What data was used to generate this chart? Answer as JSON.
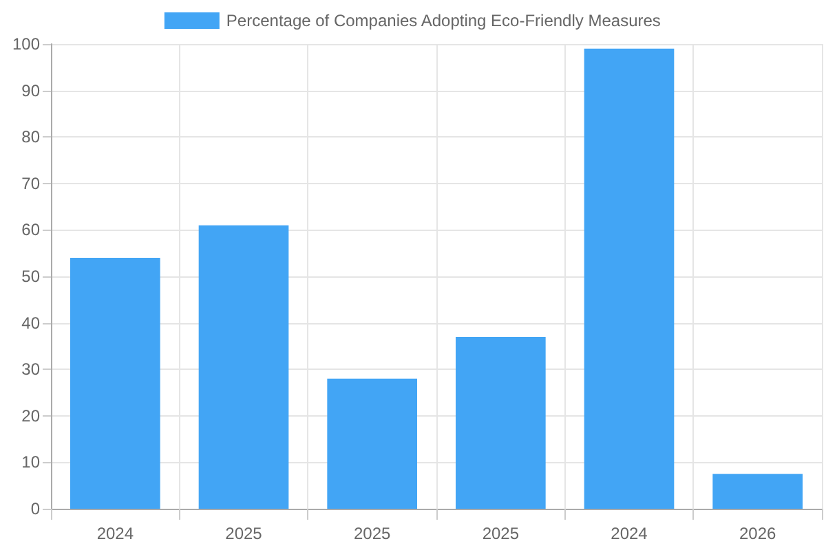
{
  "chart_data": {
    "type": "bar",
    "categories": [
      "2024",
      "2025",
      "2025",
      "2025",
      "2024",
      "2026"
    ],
    "series": [
      {
        "name": "Percentage of Companies Adopting Eco-Friendly Measures",
        "color": "#42a5f5",
        "values": [
          54,
          61,
          28,
          37,
          99,
          7.5
        ]
      }
    ],
    "ylim": [
      0,
      100
    ],
    "yticks": [
      0,
      10,
      20,
      30,
      40,
      50,
      60,
      70,
      80,
      90,
      100
    ],
    "grid": true,
    "legend": "top"
  }
}
